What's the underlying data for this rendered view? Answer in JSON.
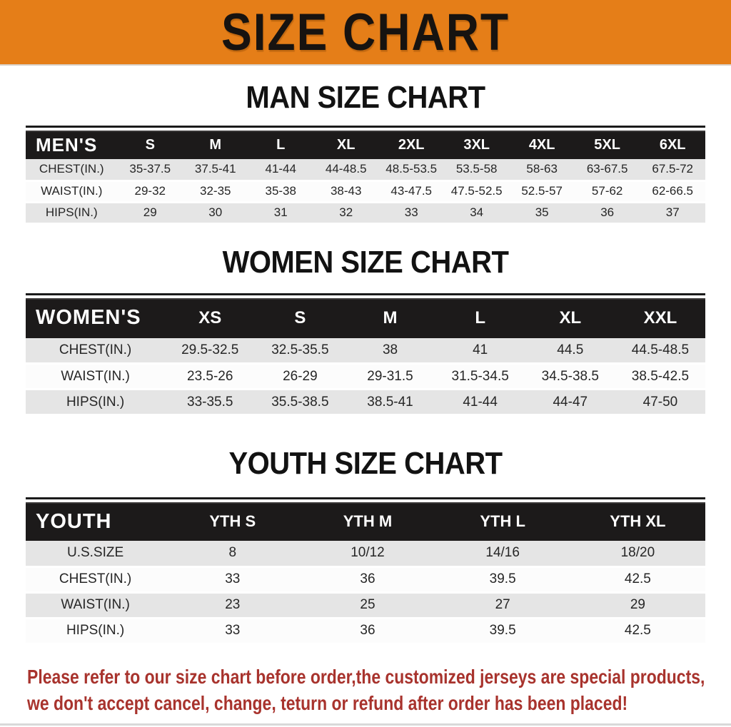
{
  "banner": {
    "title": "SIZE CHART",
    "bg_color": "#e57e18",
    "text_color": "#171310"
  },
  "chart_data": [
    {
      "type": "table",
      "title": "MAN SIZE CHART",
      "header_label": "MEN'S",
      "columns": [
        "S",
        "M",
        "L",
        "XL",
        "2XL",
        "3XL",
        "4XL",
        "5XL",
        "6XL"
      ],
      "rows": [
        {
          "label": "CHEST(IN.)",
          "values": [
            "35-37.5",
            "37.5-41",
            "41-44",
            "44-48.5",
            "48.5-53.5",
            "53.5-58",
            "58-63",
            "63-67.5",
            "67.5-72"
          ]
        },
        {
          "label": "WAIST(IN.)",
          "values": [
            "29-32",
            "32-35",
            "35-38",
            "38-43",
            "43-47.5",
            "47.5-52.5",
            "52.5-57",
            "57-62",
            "62-66.5"
          ]
        },
        {
          "label": "HIPS(IN.)",
          "values": [
            "29",
            "30",
            "31",
            "32",
            "33",
            "34",
            "35",
            "36",
            "37"
          ]
        }
      ]
    },
    {
      "type": "table",
      "title": "WOMEN SIZE CHART",
      "header_label": "WOMEN'S",
      "columns": [
        "XS",
        "S",
        "M",
        "L",
        "XL",
        "XXL"
      ],
      "rows": [
        {
          "label": "CHEST(IN.)",
          "values": [
            "29.5-32.5",
            "32.5-35.5",
            "38",
            "41",
            "44.5",
            "44.5-48.5"
          ]
        },
        {
          "label": "WAIST(IN.)",
          "values": [
            "23.5-26",
            "26-29",
            "29-31.5",
            "31.5-34.5",
            "34.5-38.5",
            "38.5-42.5"
          ]
        },
        {
          "label": "HIPS(IN.)",
          "values": [
            "33-35.5",
            "35.5-38.5",
            "38.5-41",
            "41-44",
            "44-47",
            "47-50"
          ]
        }
      ]
    },
    {
      "type": "table",
      "title": "YOUTH SIZE CHART",
      "header_label": "YOUTH",
      "columns": [
        "YTH S",
        "YTH M",
        "YTH L",
        "YTH XL"
      ],
      "rows": [
        {
          "label": "U.S.SIZE",
          "values": [
            "8",
            "10/12",
            "14/16",
            "18/20"
          ]
        },
        {
          "label": "CHEST(IN.)",
          "values": [
            "33",
            "36",
            "39.5",
            "42.5"
          ]
        },
        {
          "label": "WAIST(IN.)",
          "values": [
            "23",
            "25",
            "27",
            "29"
          ]
        },
        {
          "label": "HIPS(IN.)",
          "values": [
            "33",
            "36",
            "39.5",
            "42.5"
          ]
        }
      ]
    }
  ],
  "footer": {
    "line1": "Please refer to our size chart before order,the customized jerseys are special products,",
    "line2": "we don't accept cancel, change, teturn or refund after order has been placed!",
    "text_color": "#a8332d"
  }
}
